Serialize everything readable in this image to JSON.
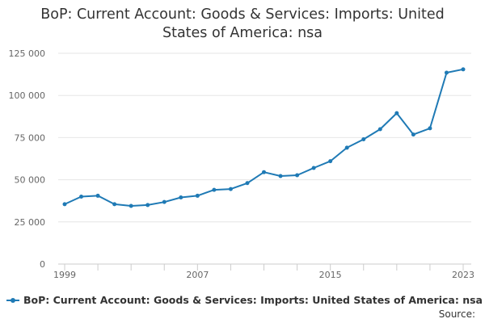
{
  "title": "BoP: Current Account: Goods & Services: Imports: United States of America: nsa",
  "source_label": "Source:",
  "colors": {
    "series": "#1f7ab5",
    "grid": "#e6e6e6",
    "axis": "#cccccc"
  },
  "chart_data": {
    "type": "line",
    "title": "BoP: Current Account: Goods & Services: Imports: United States of America: nsa",
    "xlabel": "",
    "ylabel": "",
    "x": [
      1999,
      2000,
      2001,
      2002,
      2003,
      2004,
      2005,
      2006,
      2007,
      2008,
      2009,
      2010,
      2011,
      2012,
      2013,
      2014,
      2015,
      2016,
      2017,
      2018,
      2019,
      2020,
      2021,
      2022,
      2023
    ],
    "x_tick_labels": [
      "1999",
      "2007",
      "2015",
      "2023"
    ],
    "y_ticks": [
      0,
      25000,
      50000,
      75000,
      100000,
      125000
    ],
    "y_tick_labels": [
      "0",
      "25 000",
      "50 000",
      "75 000",
      "100 000",
      "125 000"
    ],
    "ylim": [
      0,
      125000
    ],
    "grid": true,
    "legend_position": "bottom",
    "series": [
      {
        "name": "BoP: Current Account: Goods & Services: Imports: United States of America: nsa",
        "values": [
          35500,
          40000,
          40500,
          35500,
          34500,
          35000,
          36800,
          39500,
          40500,
          44000,
          44500,
          48000,
          54500,
          52200,
          52700,
          57000,
          61000,
          69000,
          74000,
          80000,
          89500,
          76800,
          80500,
          113500,
          115500
        ]
      }
    ]
  }
}
